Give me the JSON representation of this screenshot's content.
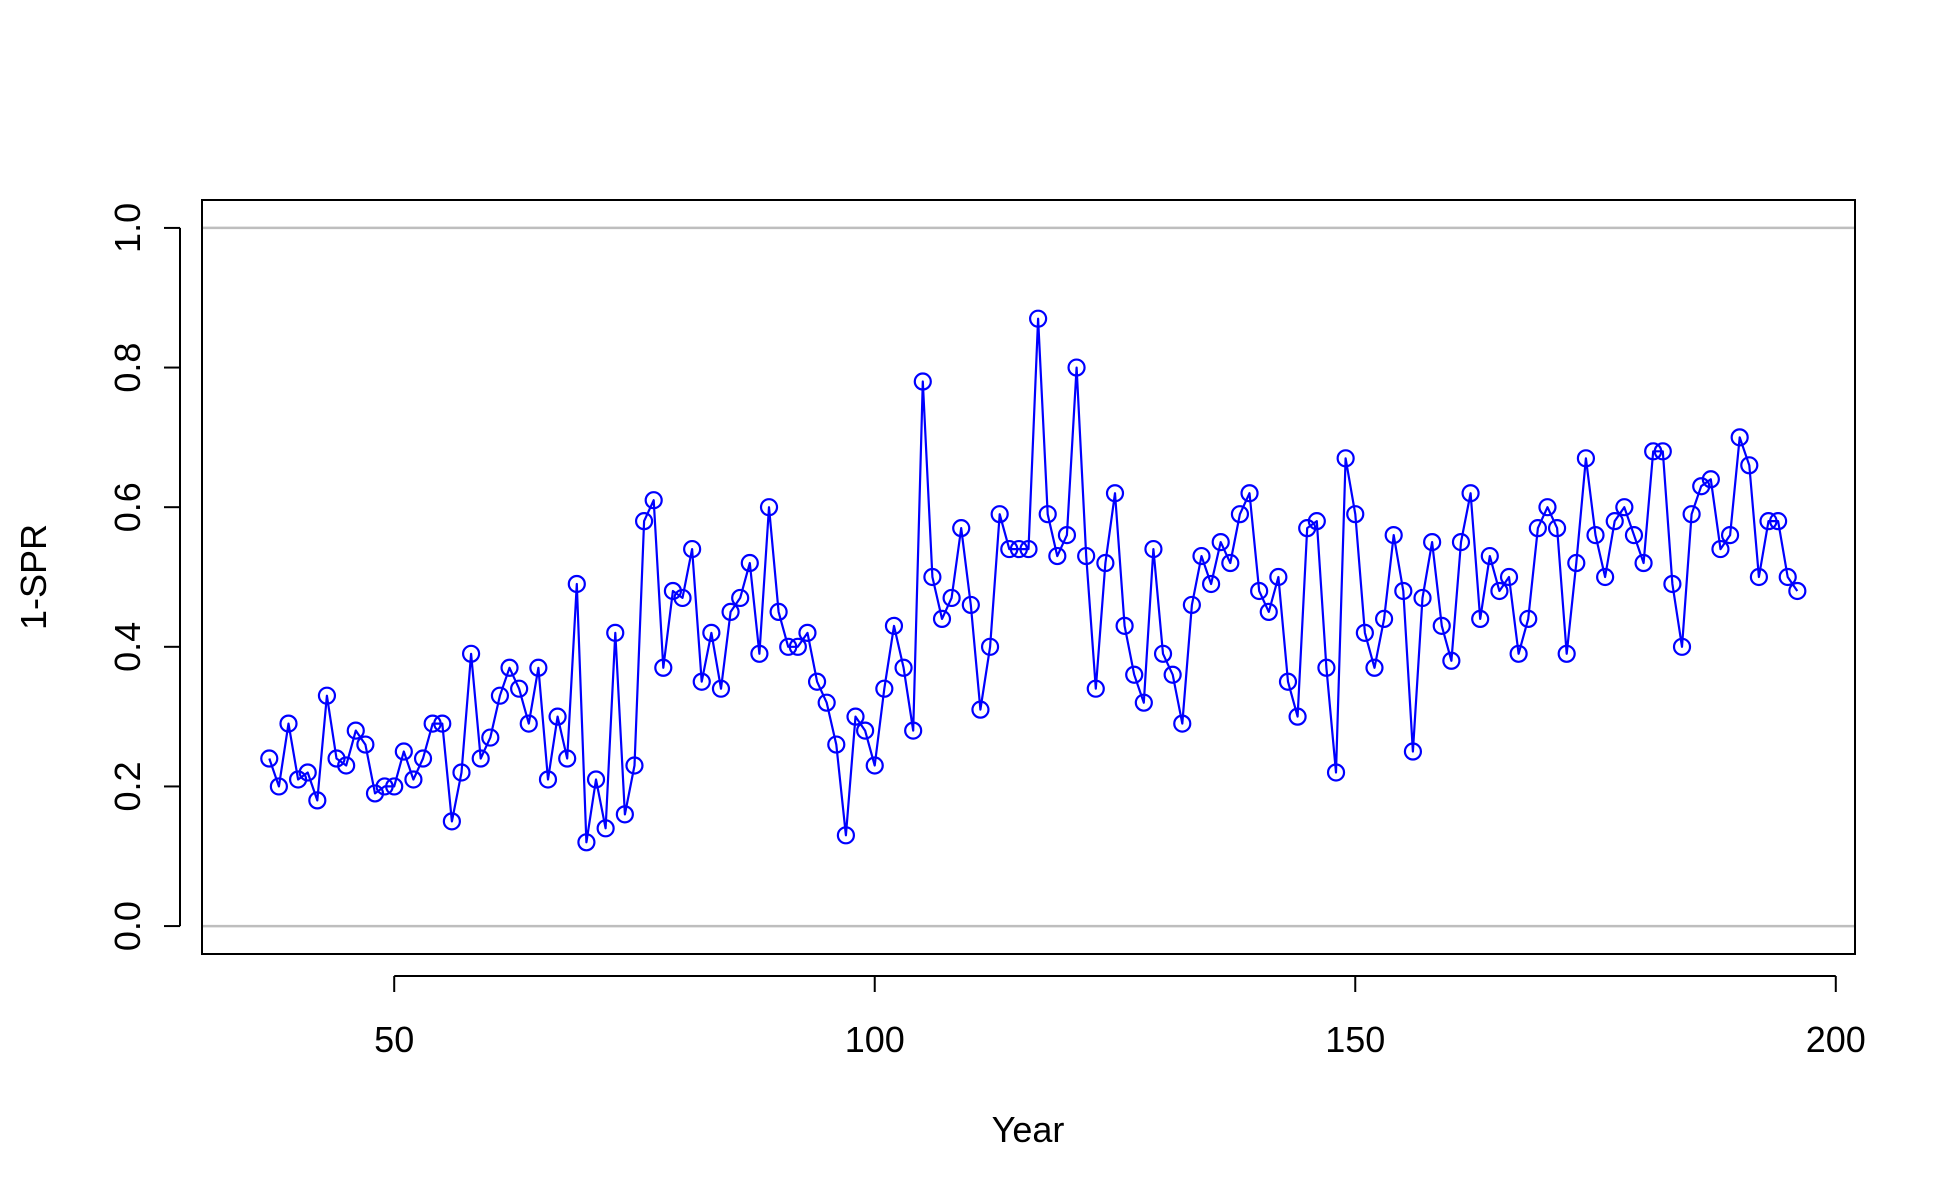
{
  "chart_data": {
    "type": "line",
    "xlabel": "Year",
    "ylabel": "1-SPR",
    "xlim": [
      30,
      202
    ],
    "ylim": [
      -0.04,
      1.04
    ],
    "x_ticks": [
      50,
      100,
      150,
      200
    ],
    "x_tick_labels": [
      "50",
      "100",
      "150",
      "200"
    ],
    "y_ticks": [
      0.0,
      0.2,
      0.4,
      0.6,
      0.8,
      1.0
    ],
    "y_tick_labels": [
      "0.0",
      "0.2",
      "0.4",
      "0.6",
      "0.8",
      "1.0"
    ],
    "reference_lines": [
      0.0,
      1.0
    ],
    "reference_line_color": "#bebebe",
    "series_color": "#0000ff",
    "marker": "open-circle",
    "x_start": 37,
    "values": [
      0.24,
      0.2,
      0.29,
      0.21,
      0.22,
      0.18,
      0.33,
      0.24,
      0.23,
      0.28,
      0.26,
      0.19,
      0.2,
      0.2,
      0.25,
      0.21,
      0.24,
      0.29,
      0.29,
      0.15,
      0.22,
      0.39,
      0.24,
      0.27,
      0.33,
      0.37,
      0.34,
      0.29,
      0.37,
      0.21,
      0.3,
      0.24,
      0.49,
      0.12,
      0.21,
      0.14,
      0.42,
      0.16,
      0.23,
      0.58,
      0.61,
      0.37,
      0.48,
      0.47,
      0.54,
      0.35,
      0.42,
      0.34,
      0.45,
      0.47,
      0.52,
      0.39,
      0.6,
      0.45,
      0.4,
      0.4,
      0.42,
      0.35,
      0.32,
      0.26,
      0.13,
      0.3,
      0.28,
      0.23,
      0.34,
      0.43,
      0.37,
      0.28,
      0.78,
      0.5,
      0.44,
      0.47,
      0.57,
      0.46,
      0.31,
      0.4,
      0.59,
      0.54,
      0.54,
      0.54,
      0.87,
      0.59,
      0.53,
      0.56,
      0.8,
      0.53,
      0.34,
      0.52,
      0.62,
      0.43,
      0.36,
      0.32,
      0.54,
      0.39,
      0.36,
      0.29,
      0.46,
      0.53,
      0.49,
      0.55,
      0.52,
      0.59,
      0.62,
      0.48,
      0.45,
      0.5,
      0.35,
      0.3,
      0.57,
      0.58,
      0.37,
      0.22,
      0.67,
      0.59,
      0.42,
      0.37,
      0.44,
      0.56,
      0.48,
      0.25,
      0.47,
      0.55,
      0.43,
      0.38,
      0.55,
      0.62,
      0.44,
      0.53,
      0.48,
      0.5,
      0.39,
      0.44,
      0.57,
      0.6,
      0.57,
      0.39,
      0.52,
      0.67,
      0.56,
      0.5,
      0.58,
      0.6,
      0.56,
      0.52,
      0.68,
      0.68,
      0.49,
      0.4,
      0.59,
      0.63,
      0.64,
      0.54,
      0.56,
      0.7,
      0.66,
      0.5,
      0.58,
      0.58,
      0.5,
      0.48
    ]
  }
}
